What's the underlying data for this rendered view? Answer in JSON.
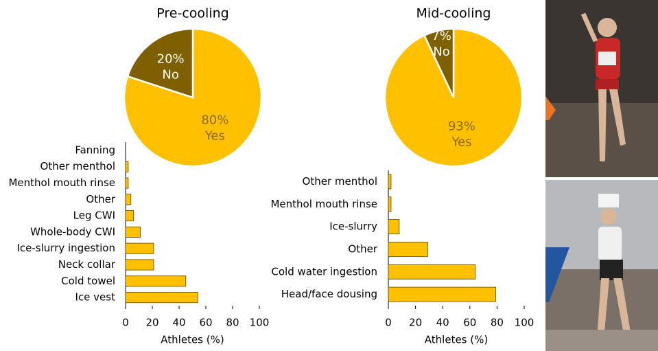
{
  "chart_data": [
    {
      "type": "pie",
      "title": "Pre-cooling",
      "categories": [
        "Yes",
        "No"
      ],
      "values": [
        80,
        20
      ],
      "value_labels": [
        "80%",
        "20%"
      ],
      "colors": [
        "#ffc000",
        "#7f6000"
      ]
    },
    {
      "type": "pie",
      "title": "Mid-cooling",
      "categories": [
        "Yes",
        "No"
      ],
      "values": [
        93,
        7
      ],
      "value_labels": [
        "93%",
        "7%"
      ],
      "colors": [
        "#ffc000",
        "#7f6000"
      ]
    },
    {
      "type": "barh",
      "x_label": "Athletes (%)",
      "categories": [
        "Fanning",
        "Other menthol",
        "Menthol mouth rinse",
        "Other",
        "Leg CWI",
        "Whole-body CWI",
        "Ice-slurry ingestion",
        "Neck collar",
        "Cold towel",
        "Ice vest"
      ],
      "values": [
        0,
        2,
        2,
        4,
        6,
        11,
        21,
        21,
        45,
        54
      ],
      "color": "#ffc000",
      "xlim": [
        0,
        100
      ],
      "xticks": [
        0,
        20,
        40,
        60,
        80,
        100
      ]
    },
    {
      "type": "barh",
      "x_label": "Athletes (%)",
      "categories": [
        "Other menthol",
        "Menthol mouth rinse",
        "Ice-slurry",
        "Other",
        "Cold water ingestion",
        "Head/face dousing"
      ],
      "values": [
        2,
        2,
        8,
        29,
        64,
        79
      ],
      "color": "#ffc000",
      "xlim": [
        0,
        100
      ],
      "xticks": [
        0,
        20,
        40,
        60,
        80,
        100
      ]
    }
  ]
}
